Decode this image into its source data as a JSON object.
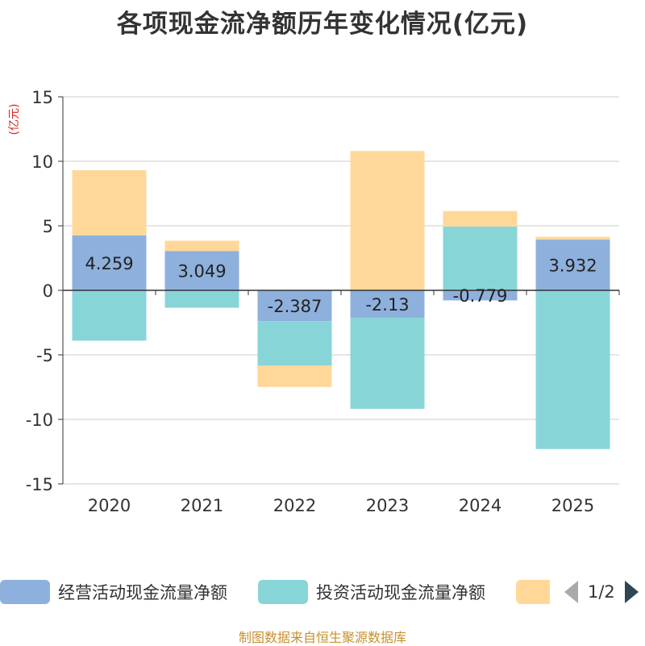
{
  "title": "各项现金流净额历年变化情况(亿元)",
  "unit_label": "(亿元)",
  "source": "制图数据来自恒生聚源数据库",
  "pager": {
    "text": "1/2"
  },
  "colors": {
    "operating": "#8eb0dc",
    "investing": "#88d5d8",
    "financing": "#ffd899",
    "axis": "#333333",
    "grid": "#cccccc"
  },
  "chart_data": {
    "type": "bar",
    "stacked": true,
    "title": "各项现金流净额历年变化情况(亿元)",
    "ylabel": "(亿元)",
    "ylim": [
      -15,
      15
    ],
    "yticks": [
      15,
      10,
      5,
      0,
      -5,
      -10,
      -15
    ],
    "categories": [
      "2020",
      "2021",
      "2022",
      "2023",
      "2024",
      "2025"
    ],
    "series": [
      {
        "name": "经营活动现金流量净额",
        "key": "operating",
        "values": [
          4.259,
          3.049,
          -2.387,
          -2.13,
          -0.779,
          3.932
        ],
        "labels": [
          "4.259",
          "3.049",
          "-2.387",
          "-2.13",
          "-0.779",
          "3.932"
        ]
      },
      {
        "name": "投资活动现金流量净额",
        "key": "investing",
        "values": [
          -3.9,
          -1.35,
          -3.45,
          -7.05,
          4.95,
          -12.3
        ]
      },
      {
        "name": "",
        "key": "financing",
        "values": [
          5.05,
          0.8,
          -1.65,
          10.8,
          1.2,
          0.22
        ]
      }
    ],
    "legend_position": "bottom"
  }
}
